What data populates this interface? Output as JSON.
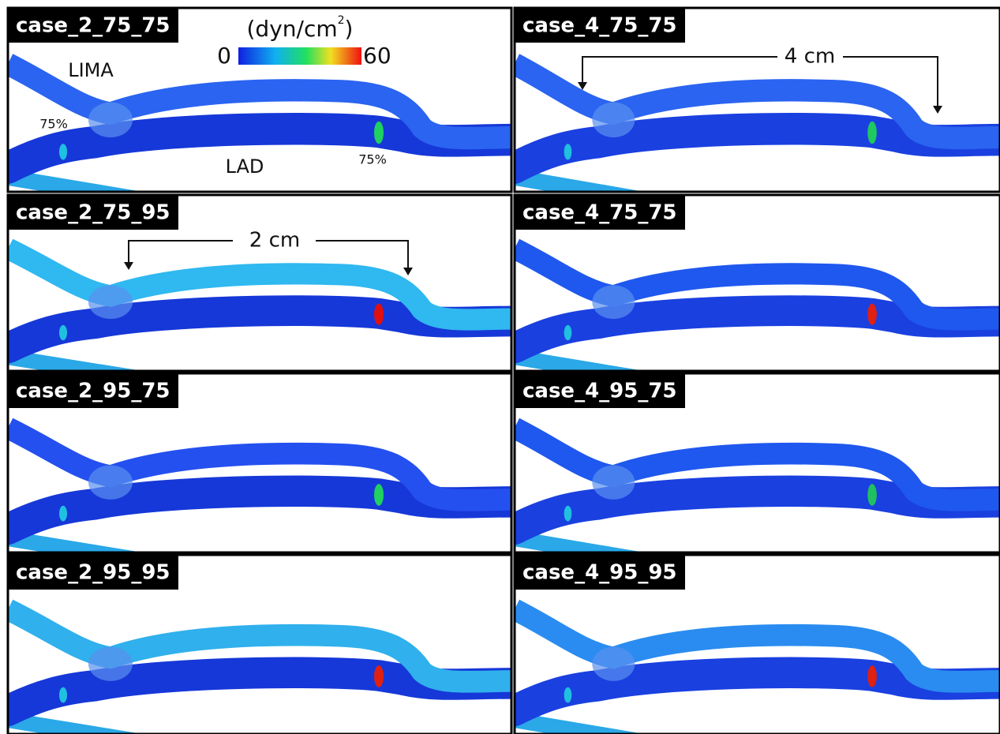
{
  "panels": [
    {
      "label": "case_2_75_75"
    },
    {
      "label": "case_4_75_75"
    },
    {
      "label": "case_2_75_95"
    },
    {
      "label": "case_4_75_75"
    },
    {
      "label": "case_2_95_75"
    },
    {
      "label": "case_4_95_75"
    },
    {
      "label": "case_2_95_95"
    },
    {
      "label": "case_4_95_95"
    }
  ],
  "colorbar": {
    "unit": "(dyn/cm",
    "unit_sup": "2",
    "unit_close": ")",
    "min": 0,
    "max": 60
  },
  "annotations": {
    "lima": "LIMA",
    "lad": "LAD",
    "stenosis_proximal": "75%",
    "stenosis_distal": "75%",
    "distance_4": "4 cm",
    "distance_2": "2 cm"
  }
}
